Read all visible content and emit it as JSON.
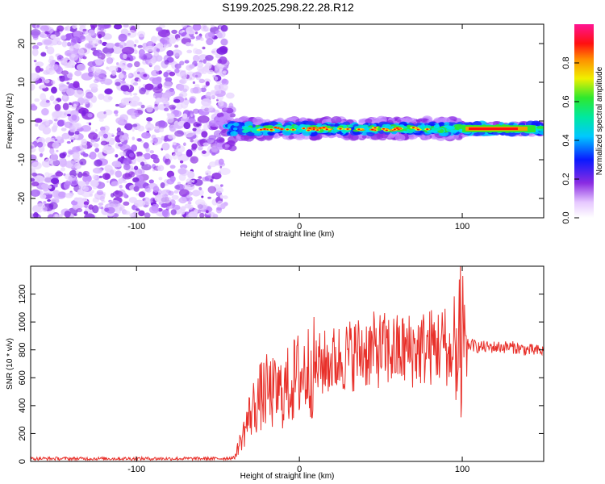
{
  "title": "S199.2025.298.22.28.R12",
  "chart_data": [
    {
      "type": "heatmap",
      "title": "S199.2025.298.22.28.R12",
      "xlabel": "Height of straight line (km)",
      "ylabel": "Frequency (Hz)",
      "xlim": [
        -165,
        150
      ],
      "ylim": [
        -25,
        25
      ],
      "xticks": [
        "-100",
        "0",
        "100"
      ],
      "xtick_values": [
        -100,
        0,
        100
      ],
      "yticks": [
        "-20",
        "-10",
        "0",
        "10",
        "20"
      ],
      "ytick_values": [
        -20,
        -10,
        0,
        10,
        20
      ],
      "noise_region_x": [
        -165,
        -45
      ],
      "signal_region_x": [
        -50,
        150
      ],
      "signal_frequency_hz": -2,
      "strong_signal_x": [
        100,
        145
      ],
      "colorbar": {
        "label": "Normalized spectral amplitude",
        "range": [
          0.0,
          1.0
        ],
        "ticks": [
          "0.0",
          "0.2",
          "0.4",
          "0.6",
          "0.8"
        ],
        "tick_values": [
          0.0,
          0.2,
          0.4,
          0.6,
          0.8
        ]
      }
    },
    {
      "type": "line",
      "xlabel": "Height of straight line (km)",
      "ylabel": "SNR (10 * v/v)",
      "xlim": [
        -165,
        150
      ],
      "ylim": [
        0,
        1400
      ],
      "xticks": [
        "-100",
        "0",
        "100"
      ],
      "xtick_values": [
        -100,
        0,
        100
      ],
      "yticks": [
        "0",
        "200",
        "400",
        "600",
        "800",
        "1000",
        "1200"
      ],
      "ytick_values": [
        0,
        200,
        400,
        600,
        800,
        1000,
        1200
      ],
      "color": "#e8302a",
      "series": [
        {
          "name": "SNR",
          "x": [
            -165,
            -150,
            -130,
            -110,
            -90,
            -70,
            -50,
            -40,
            -35,
            -30,
            -25,
            -20,
            -15,
            -10,
            -5,
            0,
            5,
            10,
            20,
            30,
            40,
            50,
            60,
            70,
            80,
            90,
            95,
            100,
            105,
            110,
            120,
            130,
            140,
            150
          ],
          "y": [
            20,
            20,
            20,
            20,
            20,
            20,
            20,
            25,
            180,
            350,
            450,
            500,
            480,
            500,
            560,
            620,
            650,
            680,
            720,
            760,
            790,
            800,
            790,
            800,
            820,
            840,
            700,
            820,
            840,
            820,
            820,
            820,
            800,
            790
          ]
        }
      ]
    }
  ]
}
